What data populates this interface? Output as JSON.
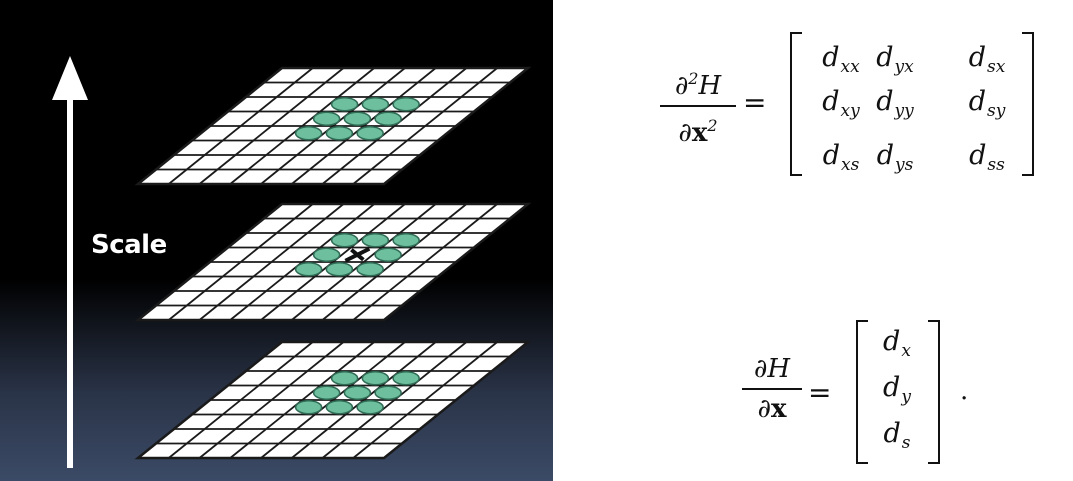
{
  "diagram": {
    "scale_label": "Scale",
    "layers": [
      {
        "name": "top",
        "marked_center": false
      },
      {
        "name": "middle",
        "marked_center": true
      },
      {
        "name": "bottom",
        "marked_center": false
      }
    ],
    "colors": {
      "grid_fill": "#ffffff",
      "grid_line": "#1a1a1a",
      "sample_fill": "#6dbf9e",
      "sample_stroke": "#2f6b55",
      "arrow": "#ffffff"
    }
  },
  "hessian": {
    "num_partial": "∂",
    "num_power": "2",
    "num_var": "H",
    "den_partial": "∂",
    "den_var": "x",
    "den_power": "2",
    "equals": "=",
    "rows": [
      [
        {
          "base": "d",
          "sub": "xx"
        },
        {
          "base": "d",
          "sub": "yx"
        },
        {
          "base": "d",
          "sub": "sx"
        }
      ],
      [
        {
          "base": "d",
          "sub": "xy"
        },
        {
          "base": "d",
          "sub": "yy"
        },
        {
          "base": "d",
          "sub": "sy"
        }
      ],
      [
        {
          "base": "d",
          "sub": "xs"
        },
        {
          "base": "d",
          "sub": "ys"
        },
        {
          "base": "d",
          "sub": "ss"
        }
      ]
    ]
  },
  "gradient": {
    "num_partial": "∂",
    "num_var": "H",
    "den_partial": "∂",
    "den_var": "x",
    "equals": "=",
    "rows": [
      {
        "base": "d",
        "sub": "x"
      },
      {
        "base": "d",
        "sub": "y"
      },
      {
        "base": "d",
        "sub": "s"
      }
    ],
    "period": "."
  }
}
